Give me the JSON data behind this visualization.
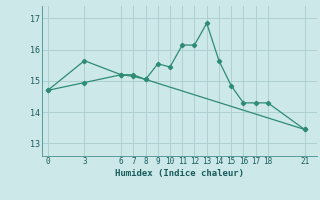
{
  "line1_x": [
    0,
    3,
    6,
    7,
    8,
    9,
    10,
    11,
    12,
    13,
    14,
    15,
    16,
    17,
    18,
    21
  ],
  "line1_y": [
    14.7,
    14.95,
    15.2,
    15.2,
    15.05,
    15.55,
    15.45,
    16.15,
    16.15,
    16.85,
    15.65,
    14.85,
    14.3,
    14.3,
    14.3,
    13.45
  ],
  "line2_x": [
    0,
    3,
    6,
    7,
    8,
    21
  ],
  "line2_y": [
    14.7,
    15.65,
    15.2,
    15.15,
    15.05,
    13.45
  ],
  "color": "#2e8b74",
  "bg_color": "#cce8e8",
  "grid_color": "#aacccc",
  "xlabel": "Humidex (Indice chaleur)",
  "xticks": [
    0,
    3,
    6,
    7,
    8,
    9,
    10,
    11,
    12,
    13,
    14,
    15,
    16,
    17,
    18,
    21
  ],
  "yticks": [
    13,
    14,
    15,
    16,
    17
  ],
  "xlim": [
    -0.5,
    22
  ],
  "ylim": [
    12.6,
    17.4
  ]
}
